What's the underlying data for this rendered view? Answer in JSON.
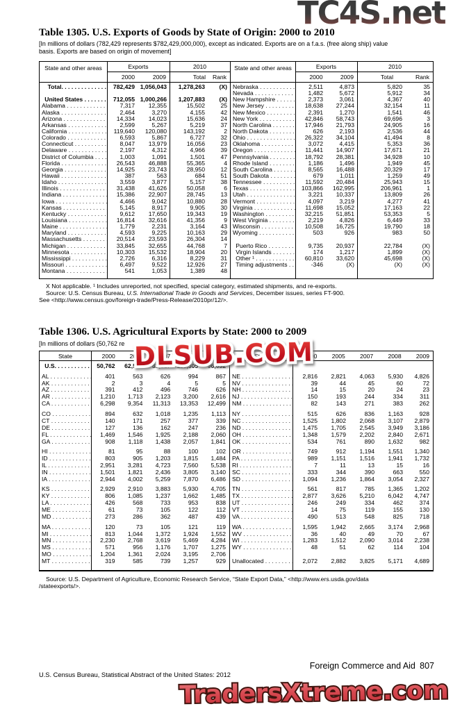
{
  "watermarks": {
    "top": "TC4S.net",
    "middle": "DLSUB.COM",
    "bottom": "TradersXtreme.com"
  },
  "footer": {
    "right": "Foreign Commerce and Aid 807",
    "left": "U.S. Census Bureau, Statistical Abstract of the United States: 2012"
  },
  "table1305": {
    "title": "Table 1305. U.S. Exports of Goods by State of Origin: 2000 to 2010",
    "note_line1": "[In millions of dollars (782,429 represents $782,429,000,000), except as indicated. Exports are on a f.a.s. (free along ship) value",
    "note_line2": "basis. Exports are based on origin of movement]",
    "header": {
      "state": "State and other areas",
      "exports": "Exports",
      "y2000": "2000",
      "y2009": "2009",
      "y2010": "2010",
      "total": "Total",
      "rank": "Rank"
    },
    "left_rows": [
      [
        "!  Total.",
        "782,429",
        "1,056,043",
        "1,278,263",
        "(X)"
      ],
      "@",
      [
        "! United States",
        "712,055",
        "1,000,266",
        "1,207,883",
        "(X)"
      ],
      [
        "Alabama",
        "7,317",
        "12,355",
        "15,502",
        "25"
      ],
      [
        "Alaska",
        "2,464",
        "3,270",
        "4,155",
        "42"
      ],
      [
        "Arizona",
        "14,334",
        "14,023",
        "15,636",
        "24"
      ],
      [
        "Arkansas",
        "2,599",
        "5,267",
        "5,219",
        "37"
      ],
      [
        "California",
        "119,640",
        "120,080",
        "143,192",
        "2"
      ],
      [
        "Colorado",
        "6,593",
        "5,867",
        "6,727",
        "32"
      ],
      [
        "Connecticut",
        "8,047",
        "13,979",
        "16,056",
        "23"
      ],
      [
        "Delaware",
        "2,197",
        "4,312",
        "4,966",
        "39"
      ],
      [
        "District of Columbia",
        "1,003",
        "1,091",
        "1,501",
        "47"
      ],
      [
        "Florida",
        "26,543",
        "46,888",
        "55,365",
        "4"
      ],
      [
        "Georgia",
        "14,925",
        "23,743",
        "28,950",
        "12"
      ],
      [
        "Hawaii",
        "387",
        "563",
        "684",
        "51"
      ],
      [
        "Idaho",
        "3,559",
        "3,877",
        "5,157",
        "38"
      ],
      [
        "Illinois",
        "31,438",
        "41,626",
        "50,058",
        "6"
      ],
      [
        "Indiana",
        "15,386",
        "22,907",
        "28,745",
        "13"
      ],
      [
        "Iowa",
        "4,466",
        "9,042",
        "10,880",
        "28"
      ],
      [
        "Kansas",
        "5,145",
        "8,917",
        "9,905",
        "30"
      ],
      [
        "Kentucky",
        "9,612",
        "17,650",
        "19,343",
        "19"
      ],
      [
        "Louisiana",
        "16,814",
        "32,616",
        "41,356",
        "9"
      ],
      [
        "Maine",
        "1,779",
        "2,231",
        "3,164",
        "43"
      ],
      [
        "Maryland",
        "4,593",
        "9,225",
        "10,163",
        "29"
      ],
      [
        "Massachusetts",
        "20,514",
        "23,593",
        "26,304",
        "14"
      ],
      [
        "Michigan",
        "33,845",
        "32,655",
        "44,768",
        "7"
      ],
      [
        "Minnesota",
        "10,303",
        "15,532",
        "18,904",
        "20"
      ],
      [
        "Mississippi",
        "2,726",
        "6,316",
        "8,229",
        "31"
      ],
      [
        "Missouri",
        "6,497",
        "9,522",
        "12,926",
        "27"
      ],
      [
        "Montana",
        "541",
        "1,053",
        "1,389",
        "48"
      ]
    ],
    "right_rows": [
      [
        "Nebraska",
        "2,511",
        "4,873",
        "5,820",
        "35"
      ],
      [
        "Nevada",
        "1,482",
        "5,672",
        "5,912",
        "34"
      ],
      [
        "New Hampshire",
        "2,373",
        "3,061",
        "4,367",
        "40"
      ],
      [
        "New Jersey",
        "18,638",
        "27,244",
        "32,154",
        "11"
      ],
      [
        "New Mexico",
        "2,391",
        "1,270",
        "1,541",
        "46"
      ],
      [
        "New York",
        "42,846",
        "58,743",
        "69,696",
        "3"
      ],
      [
        "North Carolina",
        "17,946",
        "21,793",
        "24,905",
        "16"
      ],
      [
        "North Dakota",
        "626",
        "2,193",
        "2,536",
        "44"
      ],
      [
        "Ohio",
        "26,322",
        "34,104",
        "41,494",
        "8"
      ],
      [
        "Oklahoma",
        "3,072",
        "4,415",
        "5,353",
        "36"
      ],
      [
        "Oregon",
        "11,441",
        "14,907",
        "17,671",
        "21"
      ],
      [
        "Pennsylvania",
        "18,792",
        "28,381",
        "34,928",
        "10"
      ],
      [
        "Rhode Island",
        "1,186",
        "1,496",
        "1,949",
        "45"
      ],
      [
        "South Carolina",
        "8,565",
        "16,488",
        "20,329",
        "17"
      ],
      [
        "South Dakota",
        "679",
        "1,011",
        "1,259",
        "49"
      ],
      [
        "Tennessee",
        "11,592",
        "20,484",
        "25,943",
        "15"
      ],
      [
        "Texas",
        "103,866",
        "162,995",
        "206,961",
        "1"
      ],
      [
        "Utah",
        "3,221",
        "10,337",
        "13,809",
        "26"
      ],
      [
        "Vermont",
        "4,097",
        "3,219",
        "4,277",
        "41"
      ],
      [
        "Virginia",
        "11,698",
        "15,052",
        "17,163",
        "22"
      ],
      [
        "Washington",
        "32,215",
        "51,851",
        "53,353",
        "5"
      ],
      [
        "West Virginia",
        "2,219",
        "4,826",
        "6,449",
        "33"
      ],
      [
        "Wisconsin",
        "10,508",
        "16,725",
        "19,790",
        "18"
      ],
      [
        "Wyoming",
        "503",
        "926",
        "983",
        "50"
      ],
      "@",
      [
        " Puerto Rico",
        "9,735",
        "20,937",
        "22,784",
        "(X)"
      ],
      [
        " Virgin Islands",
        "174",
        "1,217",
        "1,899",
        "(X)"
      ],
      [
        " Other ¹",
        "60,810",
        "33,620",
        "45,698",
        "(X)"
      ],
      [
        " Timing adjustments",
        "-346",
        "(X)",
        "(X)",
        "(X)"
      ]
    ],
    "fn1": "X Not applicable. ¹ Includes unreported, not specified, special category, estimated  shipments, and re-exports.",
    "fn2a": "Source: U.S. Census Bureau, ",
    "fn2b": "U.S. International Trade in Goods and Services",
    "fn2c": ", December issues, series FT-900.",
    "fn3": "See <http://www.census.gov/foreign-trade/Press-Release/2010pr/12/>."
  },
  "table1306": {
    "title": "Table 1306. U.S. Agricultural Exports by State: 2000 to 2009",
    "note_visible": "[In millions of dollars (50,762 re",
    "header": {
      "state": "State",
      "years": [
        "2000",
        "2005",
        "2007",
        "2008",
        "2009"
      ]
    },
    "left_rows": [
      [
        "! U.S.",
        "50,762",
        "62,516",
        "82,217",
        "115,305",
        "96,632"
      ],
      null,
      [
        "AL",
        "401",
        "563",
        "626",
        "994",
        "867"
      ],
      [
        "AK",
        "2",
        "3",
        "4",
        "5",
        "5"
      ],
      [
        "AZ",
        "391",
        "412",
        "496",
        "746",
        "626"
      ],
      [
        "AR",
        "1,210",
        "1,713",
        "2,123",
        "3,200",
        "2,616"
      ],
      [
        "CA",
        "6,298",
        "9,354",
        "11,313",
        "13,353",
        "12,499"
      ],
      null,
      [
        "CO",
        "894",
        "632",
        "1,018",
        "1,235",
        "1,113"
      ],
      [
        "CT",
        "140",
        "171",
        "257",
        "377",
        "339"
      ],
      [
        "DE",
        "127",
        "136",
        "162",
        "247",
        "236"
      ],
      [
        "FL",
        "1,469",
        "1,546",
        "1,925",
        "2,188",
        "2,060"
      ],
      [
        "GA",
        "908",
        "1,118",
        "1,438",
        "2,057",
        "1,841"
      ],
      null,
      [
        "HI",
        "81",
        "95",
        "88",
        "100",
        "102"
      ],
      [
        "ID",
        "803",
        "905",
        "1,203",
        "1,815",
        "1,484"
      ],
      [
        "IL",
        "2,951",
        "3,281",
        "4,723",
        "7,560",
        "5,538"
      ],
      [
        "IN",
        "1,501",
        "1,821",
        "2,436",
        "3,805",
        "3,140"
      ],
      [
        "IA",
        "2,944",
        "4,002",
        "5,259",
        "7,870",
        "6,486"
      ],
      null,
      [
        "KS",
        "2,929",
        "2,910",
        "3,883",
        "5,930",
        "4,705"
      ],
      [
        "KY",
        "806",
        "1,085",
        "1,237",
        "1,662",
        "1,485"
      ],
      [
        "LA",
        "426",
        "568",
        "733",
        "953",
        "838"
      ],
      [
        "ME",
        "61",
        "73",
        "105",
        "122",
        "112"
      ],
      [
        "MD",
        "273",
        "286",
        "362",
        "487",
        "439"
      ],
      null,
      [
        "MA",
        "120",
        "73",
        "105",
        "121",
        "119"
      ],
      [
        "MI",
        "813",
        "1,044",
        "1,372",
        "1,924",
        "1,552"
      ],
      [
        "MN",
        "2,230",
        "2,768",
        "3,619",
        "5,469",
        "4,284"
      ],
      [
        "MS",
        "571",
        "956",
        "1,176",
        "1,707",
        "1,275"
      ],
      [
        "MO",
        "1,204",
        "1,361",
        "2,024",
        "3,195",
        "2,706"
      ],
      [
        "MT",
        "319",
        "585",
        "739",
        "1,257",
        "929"
      ]
    ],
    "right_rows": [
      "@",
      null,
      [
        "NE",
        "2,816",
        "2,821",
        "4,063",
        "5,930",
        "4,826"
      ],
      [
        "NV",
        "39",
        "44",
        "45",
        "60",
        "72"
      ],
      [
        "NH",
        "14",
        "15",
        "20",
        "24",
        "23"
      ],
      [
        "NJ",
        "150",
        "193",
        "244",
        "334",
        "311"
      ],
      [
        "NM",
        "82",
        "143",
        "271",
        "383",
        "262"
      ],
      null,
      [
        "NY",
        "515",
        "626",
        "836",
        "1,163",
        "928"
      ],
      [
        "NC",
        "1,525",
        "1,802",
        "2,068",
        "3,107",
        "2,879"
      ],
      [
        "ND",
        "1,475",
        "1,705",
        "2,545",
        "3,949",
        "3,186"
      ],
      [
        "OH",
        "1,348",
        "1,579",
        "2,202",
        "2,840",
        "2,671"
      ],
      [
        "OK",
        "534",
        "761",
        "890",
        "1,632",
        "982"
      ],
      null,
      [
        "OR",
        "749",
        "912",
        "1,194",
        "1,551",
        "1,340"
      ],
      [
        "PA",
        "989",
        "1,151",
        "1,516",
        "1,941",
        "1,732"
      ],
      [
        "RI",
        "7",
        "11",
        "13",
        "15",
        "16"
      ],
      [
        "SC",
        "333",
        "344",
        "390",
        "663",
        "550"
      ],
      [
        "SD",
        "1,094",
        "1,236",
        "1,864",
        "3,054",
        "2,327"
      ],
      null,
      [
        "TN",
        "561",
        "817",
        "785",
        "1,365",
        "1,202"
      ],
      [
        "TX",
        "2,877",
        "3,626",
        "5,210",
        "6,042",
        "4,747"
      ],
      [
        "UT",
        "246",
        "249",
        "334",
        "462",
        "374"
      ],
      [
        "VT",
        "14",
        "75",
        "119",
        "155",
        "130"
      ],
      [
        "VA",
        "490",
        "513",
        "548",
        "825",
        "718"
      ],
      null,
      [
        "WA",
        "1,595",
        "1,942",
        "2,665",
        "3,174",
        "2,968"
      ],
      [
        "WV",
        "36",
        "40",
        "49",
        "70",
        "67"
      ],
      [
        "WI",
        "1,283",
        "1,512",
        "2,090",
        "3,014",
        "2,238"
      ],
      [
        "WY",
        "48",
        "51",
        "62",
        "114",
        "104"
      ],
      "@",
      [
        "Unallocated",
        "2,072",
        "2,882",
        "3,825",
        "5,171",
        "4,689"
      ]
    ],
    "src1": "Source: U.S. Department of Agriculture, Economic Research Service, “State Export Data,” <http://www.ers.usda.gov/data",
    "src2": "/stateexports/>."
  }
}
